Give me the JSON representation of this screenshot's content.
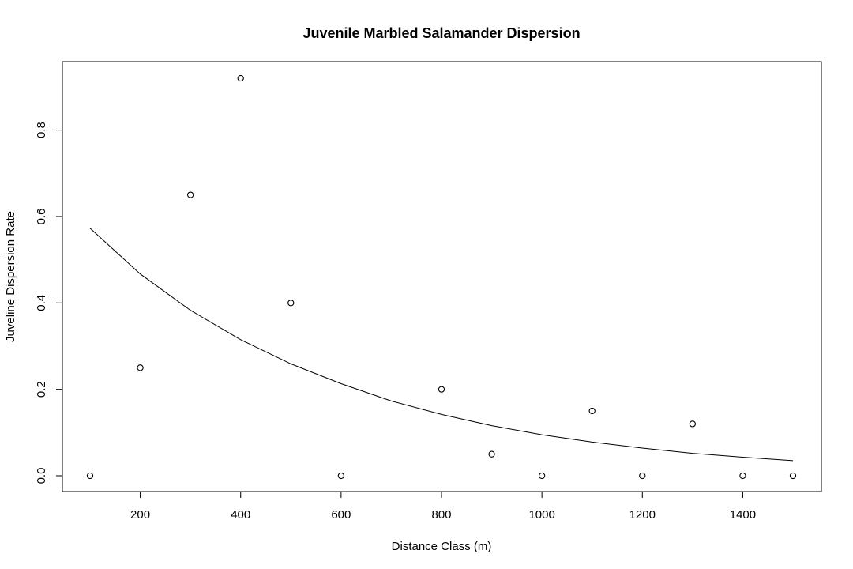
{
  "chart_data": {
    "type": "scatter",
    "title": "Juvenile Marbled Salamander Dispersion",
    "xlabel": "Distance Class (m)",
    "ylabel": "Juveline Dispersion Rate",
    "xlim": [
      100,
      1500
    ],
    "ylim": [
      0,
      0.92
    ],
    "x_ticks": [
      200,
      400,
      600,
      800,
      1000,
      1200,
      1400
    ],
    "y_ticks": [
      0.0,
      0.2,
      0.4,
      0.6,
      0.8
    ],
    "x_tick_labels": [
      "200",
      "400",
      "600",
      "800",
      "1000",
      "1200",
      "1400"
    ],
    "y_tick_labels": [
      "0.0",
      "0.2",
      "0.4",
      "0.6",
      "0.8"
    ],
    "grid": false,
    "legend": "none",
    "series": [
      {
        "type": "scatter",
        "marker": "open-circle",
        "x": [
          100,
          200,
          300,
          400,
          500,
          600,
          800,
          900,
          1000,
          1100,
          1200,
          1300,
          1400,
          1500
        ],
        "y": [
          0.0,
          0.25,
          0.65,
          0.92,
          0.4,
          0.0,
          0.2,
          0.05,
          0.0,
          0.15,
          0.0,
          0.12,
          0.0,
          0.0
        ]
      },
      {
        "type": "line",
        "x": [
          100,
          200,
          300,
          400,
          500,
          600,
          700,
          800,
          900,
          1000,
          1100,
          1200,
          1300,
          1400,
          1500
        ],
        "y": [
          0.573,
          0.467,
          0.383,
          0.315,
          0.259,
          0.213,
          0.173,
          0.142,
          0.116,
          0.095,
          0.078,
          0.064,
          0.052,
          0.043,
          0.035
        ]
      }
    ]
  }
}
